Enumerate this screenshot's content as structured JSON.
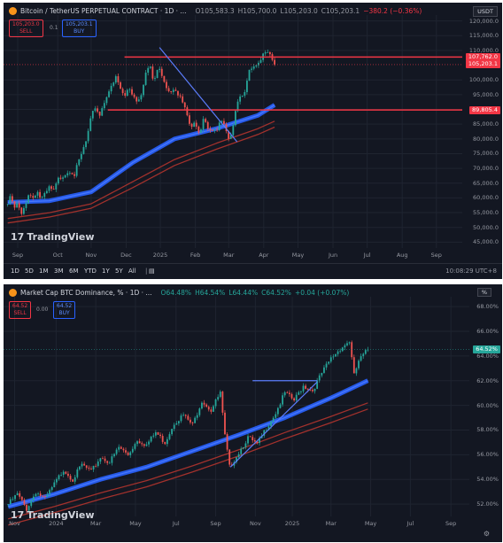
{
  "chart_data": [
    {
      "type": "candlestick",
      "title": "Bitcoin / TetherUS PERPETUAL CONTRACT · 1D · ...",
      "ohlc": {
        "o": "O105,583.3",
        "h": "H105,700.0",
        "l": "L105,203.0",
        "c": "C105,203.1",
        "chg": "−380.2 (−0.36%)"
      },
      "sell": {
        "price": "105,203.0",
        "label": "SELL"
      },
      "buy": {
        "price": "105,203.1",
        "label": "BUY"
      },
      "spread": "0.1",
      "currency": "USDT",
      "y_ticks": [
        "120,000.0",
        "115,000.0",
        "110,000.0",
        "100,000.0",
        "95,000.0",
        "90,000.0",
        "85,000.0",
        "80,000.0",
        "75,000.0",
        "70,000.0",
        "65,000.0",
        "60,000.0",
        "55,000.0",
        "50,000.0",
        "45,000.0"
      ],
      "ylim": [
        43000,
        122000
      ],
      "x_ticks": [
        "Sep",
        "Oct",
        "Nov",
        "Dec",
        "2025",
        "Feb",
        "Mar",
        "Apr",
        "May",
        "Jun",
        "Jul",
        "Aug",
        "Sep"
      ],
      "price_tags": [
        {
          "label": "107,762.0",
          "value": 107762,
          "color": "#f23645"
        },
        {
          "label": "105,203.1",
          "value": 105203,
          "color": "#f23645"
        },
        {
          "label": "89,805.4",
          "value": 89805,
          "color": "#f23645"
        }
      ],
      "resistance": 107762,
      "support": 89805,
      "close_path": [
        [
          0,
          58000
        ],
        [
          0.04,
          60500
        ],
        [
          0.08,
          56000
        ],
        [
          0.12,
          58500
        ],
        [
          0.16,
          53500
        ],
        [
          0.2,
          57000
        ],
        [
          0.25,
          61500
        ],
        [
          0.3,
          60000
        ],
        [
          0.35,
          62500
        ],
        [
          0.4,
          59500
        ],
        [
          0.45,
          61000
        ],
        [
          0.5,
          63500
        ],
        [
          0.55,
          62000
        ],
        [
          0.6,
          66000
        ],
        [
          0.65,
          67500
        ],
        [
          0.7,
          68500
        ],
        [
          0.75,
          69500
        ],
        [
          0.8,
          68000
        ],
        [
          0.85,
          72000
        ],
        [
          0.9,
          76000
        ],
        [
          0.95,
          80000
        ],
        [
          1.0,
          87000
        ],
        [
          1.05,
          91000
        ],
        [
          1.1,
          88000
        ],
        [
          1.15,
          92000
        ],
        [
          1.2,
          96000
        ],
        [
          1.25,
          97500
        ],
        [
          1.3,
          101000
        ],
        [
          1.35,
          97000
        ],
        [
          1.4,
          94000
        ],
        [
          1.45,
          98000
        ],
        [
          1.5,
          95000
        ],
        [
          1.55,
          93000
        ],
        [
          1.6,
          95500
        ],
        [
          1.65,
          102000
        ],
        [
          1.7,
          105000
        ],
        [
          1.75,
          99000
        ],
        [
          1.8,
          104000
        ],
        [
          1.85,
          102000
        ],
        [
          1.9,
          98000
        ],
        [
          1.95,
          96000
        ],
        [
          2.0,
          98000
        ],
        [
          2.05,
          95000
        ],
        [
          2.1,
          92000
        ],
        [
          2.15,
          88000
        ],
        [
          2.2,
          83000
        ],
        [
          2.25,
          86000
        ],
        [
          2.3,
          82000
        ],
        [
          2.35,
          88000
        ],
        [
          2.4,
          84000
        ],
        [
          2.45,
          83000
        ],
        [
          2.5,
          82000
        ],
        [
          2.55,
          86000
        ],
        [
          2.6,
          84000
        ],
        [
          2.65,
          79000
        ],
        [
          2.7,
          85000
        ],
        [
          2.75,
          93000
        ],
        [
          2.8,
          95000
        ],
        [
          2.85,
          97000
        ],
        [
          2.9,
          103000
        ],
        [
          2.95,
          104000
        ],
        [
          3.0,
          104500
        ],
        [
          3.05,
          107500
        ],
        [
          3.1,
          111000
        ],
        [
          3.15,
          109000
        ],
        [
          3.2,
          105200
        ]
      ],
      "x_tick_pos": [
        0.12,
        0.6,
        1.0,
        1.42,
        1.83,
        2.25,
        2.65,
        3.07,
        3.48,
        3.9,
        4.31,
        4.73,
        5.14
      ],
      "x_span": [
        -0.05,
        5.45
      ],
      "ma_blue": [
        [
          0,
          58500
        ],
        [
          0.5,
          59000
        ],
        [
          1.0,
          62000
        ],
        [
          1.5,
          72000
        ],
        [
          2.0,
          80000
        ],
        [
          2.5,
          83500
        ],
        [
          3.0,
          88000
        ],
        [
          3.2,
          91500
        ]
      ],
      "ma_red1": [
        [
          0,
          53000
        ],
        [
          0.5,
          55000
        ],
        [
          1.0,
          58000
        ],
        [
          1.5,
          65500
        ],
        [
          2.0,
          73000
        ],
        [
          2.5,
          78500
        ],
        [
          3.0,
          83500
        ],
        [
          3.2,
          86000
        ]
      ],
      "ma_red2": [
        [
          0,
          51500
        ],
        [
          0.5,
          53500
        ],
        [
          1.0,
          56500
        ],
        [
          1.5,
          63500
        ],
        [
          2.0,
          71000
        ],
        [
          2.5,
          76500
        ],
        [
          3.0,
          81500
        ],
        [
          3.2,
          84000
        ]
      ],
      "trendline": [
        [
          1.82,
          111000
        ],
        [
          2.75,
          79000
        ]
      ],
      "toolbar": [
        "1D",
        "5D",
        "1M",
        "3M",
        "6M",
        "YTD",
        "1Y",
        "5Y",
        "All"
      ],
      "clock": "10:08:29 UTC+8"
    },
    {
      "type": "candlestick",
      "title": "Market Cap BTC Dominance, % · 1D · ...",
      "ohlc": {
        "o": "O64.48%",
        "h": "H64.54%",
        "l": "L64.44%",
        "c": "C64.52%",
        "chg": "+0.04 (+0.07%)"
      },
      "sell": {
        "price": "64.52",
        "label": "SELL"
      },
      "buy": {
        "price": "64.52",
        "label": "BUY"
      },
      "spread": "0.00",
      "unit_button": "%",
      "y_ticks": [
        "68.00%",
        "66.00%",
        "64.00%",
        "62.00%",
        "60.00%",
        "58.00%",
        "56.00%",
        "54.00%",
        "52.00%"
      ],
      "ylim": [
        51,
        68.8
      ],
      "x_ticks": [
        "Nov",
        "2024",
        "Mar",
        "May",
        "Jul",
        "Sep",
        "Nov",
        "2025",
        "Mar",
        "May",
        "Jul",
        "Sep"
      ],
      "price_tags": [
        {
          "label": "64.52%",
          "value": 64.52,
          "color": "#26a69a"
        }
      ],
      "close_path": [
        [
          0,
          52.0
        ],
        [
          0.1,
          52.8
        ],
        [
          0.2,
          51.6
        ],
        [
          0.3,
          53.0
        ],
        [
          0.4,
          52.4
        ],
        [
          0.5,
          53.6
        ],
        [
          0.6,
          54.8
        ],
        [
          0.7,
          54.0
        ],
        [
          0.8,
          55.2
        ],
        [
          0.9,
          54.6
        ],
        [
          1.0,
          55.8
        ],
        [
          1.1,
          55.4
        ],
        [
          1.2,
          56.6
        ],
        [
          1.3,
          56.0
        ],
        [
          1.4,
          57.2
        ],
        [
          1.5,
          56.8
        ],
        [
          1.6,
          57.8
        ],
        [
          1.7,
          57.0
        ],
        [
          1.8,
          58.6
        ],
        [
          1.9,
          59.2
        ],
        [
          2.0,
          58.4
        ],
        [
          2.1,
          60.4
        ],
        [
          2.2,
          59.6
        ],
        [
          2.3,
          61.0
        ],
        [
          2.35,
          57.5
        ],
        [
          2.4,
          55.0
        ],
        [
          2.5,
          56.2
        ],
        [
          2.6,
          57.4
        ],
        [
          2.7,
          56.8
        ],
        [
          2.8,
          58.2
        ],
        [
          2.9,
          59.4
        ],
        [
          3.0,
          61.0
        ],
        [
          3.1,
          60.4
        ],
        [
          3.2,
          61.6
        ],
        [
          3.3,
          61.2
        ],
        [
          3.4,
          62.6
        ],
        [
          3.5,
          63.8
        ],
        [
          3.6,
          64.6
        ],
        [
          3.7,
          65.2
        ],
        [
          3.75,
          62.4
        ],
        [
          3.8,
          63.6
        ],
        [
          3.9,
          64.52
        ]
      ],
      "x_tick_pos": [
        0.07,
        0.52,
        0.95,
        1.38,
        1.82,
        2.25,
        2.68,
        3.08,
        3.5,
        3.93,
        4.36,
        4.8
      ],
      "x_span": [
        -0.05,
        5.0
      ],
      "ma_blue": [
        [
          0,
          51.8
        ],
        [
          0.5,
          52.8
        ],
        [
          1.0,
          54.0
        ],
        [
          1.5,
          55.0
        ],
        [
          2.0,
          56.3
        ],
        [
          2.5,
          57.6
        ],
        [
          3.0,
          59.0
        ],
        [
          3.5,
          60.6
        ],
        [
          3.9,
          62.0
        ]
      ],
      "ma_red1": [
        [
          0,
          50.8
        ],
        [
          0.5,
          51.8
        ],
        [
          1.0,
          52.9
        ],
        [
          1.5,
          53.9
        ],
        [
          2.0,
          55.1
        ],
        [
          2.5,
          56.4
        ],
        [
          3.0,
          57.8
        ],
        [
          3.5,
          59.1
        ],
        [
          3.9,
          60.2
        ]
      ],
      "ma_red2": [
        [
          0,
          50.3
        ],
        [
          0.5,
          51.3
        ],
        [
          1.0,
          52.4
        ],
        [
          1.5,
          53.4
        ],
        [
          2.0,
          54.6
        ],
        [
          2.5,
          55.9
        ],
        [
          3.0,
          57.3
        ],
        [
          3.5,
          58.6
        ],
        [
          3.9,
          59.7
        ]
      ],
      "resistance_segment": [
        [
          2.65,
          62.0
        ],
        [
          3.35,
          62.0
        ]
      ],
      "trendline": [
        [
          2.41,
          55.0
        ],
        [
          3.35,
          61.9
        ]
      ]
    }
  ],
  "ui": {
    "watermark": "TradingView",
    "logo_mark": "17"
  },
  "colors": {
    "up": "#26a69a",
    "down": "#ef5350",
    "ma_blue": "#2962ff",
    "ma_red": "#b2342e",
    "line": "#f23645",
    "trend": "#5b7cfa"
  }
}
